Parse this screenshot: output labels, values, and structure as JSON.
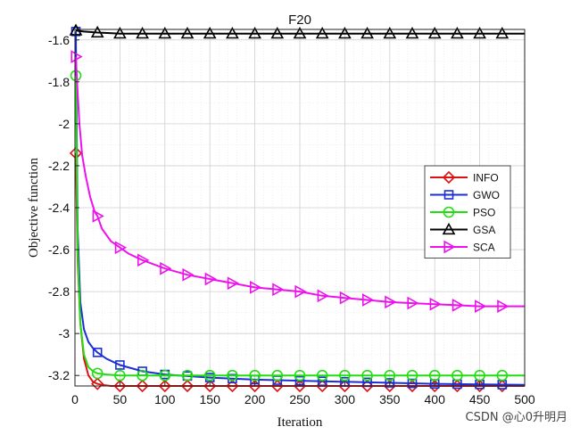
{
  "chart_data": {
    "type": "line",
    "title": "F20",
    "xlabel": "Iteration",
    "ylabel": "Objective function",
    "xlim": [
      0,
      500
    ],
    "ylim": [
      -3.25,
      -1.55
    ],
    "xticks": [
      0,
      50,
      100,
      150,
      200,
      250,
      300,
      350,
      400,
      450,
      500
    ],
    "yticks": [
      -3.2,
      -3.0,
      -2.8,
      -2.6,
      -2.4,
      -2.2,
      -2.0,
      -1.8,
      -1.6
    ],
    "ytick_labels": [
      "-3.2",
      "-3",
      "-2.8",
      "-2.6",
      "-2.4",
      "-2.2",
      "-2",
      "-1.8",
      "-1.6"
    ],
    "grid": true,
    "legend_position": "right",
    "series": [
      {
        "name": "INFO",
        "color": "#dd1111",
        "marker": "diamond",
        "x": [
          1,
          3,
          6,
          10,
          15,
          20,
          25,
          30,
          40,
          60,
          100,
          200,
          500
        ],
        "y": [
          -2.14,
          -2.65,
          -2.95,
          -3.12,
          -3.2,
          -3.23,
          -3.24,
          -3.245,
          -3.25,
          -3.25,
          -3.25,
          -3.25,
          -3.25
        ]
      },
      {
        "name": "GWO",
        "color": "#1a2fd6",
        "marker": "square",
        "x": [
          1,
          3,
          6,
          10,
          15,
          20,
          25,
          35,
          50,
          75,
          100,
          150,
          200,
          300,
          400,
          500
        ],
        "y": [
          -1.56,
          -2.5,
          -2.85,
          -2.98,
          -3.04,
          -3.07,
          -3.09,
          -3.12,
          -3.15,
          -3.18,
          -3.195,
          -3.21,
          -3.22,
          -3.23,
          -3.24,
          -3.245
        ]
      },
      {
        "name": "PSO",
        "color": "#22dd11",
        "marker": "circle",
        "x": [
          1,
          3,
          6,
          10,
          15,
          20,
          25,
          35,
          50,
          100,
          200,
          500
        ],
        "y": [
          -1.77,
          -2.6,
          -2.95,
          -3.1,
          -3.16,
          -3.18,
          -3.19,
          -3.195,
          -3.2,
          -3.2,
          -3.2,
          -3.2
        ]
      },
      {
        "name": "GSA",
        "color": "#000000",
        "marker": "triangle-up",
        "x": [
          1,
          10,
          25,
          50,
          100,
          200,
          500
        ],
        "y": [
          -1.555,
          -1.56,
          -1.565,
          -1.57,
          -1.57,
          -1.57,
          -1.57
        ]
      },
      {
        "name": "SCA",
        "color": "#ee11ee",
        "marker": "triangle-right",
        "x": [
          1,
          3,
          5,
          8,
          12,
          17,
          22,
          25,
          30,
          40,
          50,
          60,
          75,
          100,
          125,
          150,
          175,
          200,
          225,
          250,
          275,
          300,
          325,
          350,
          375,
          400,
          425,
          450,
          475,
          500
        ],
        "y": [
          -1.68,
          -1.85,
          -2.0,
          -2.15,
          -2.25,
          -2.35,
          -2.42,
          -2.44,
          -2.5,
          -2.56,
          -2.59,
          -2.62,
          -2.65,
          -2.69,
          -2.72,
          -2.74,
          -2.76,
          -2.78,
          -2.79,
          -2.8,
          -2.82,
          -2.83,
          -2.84,
          -2.85,
          -2.855,
          -2.86,
          -2.865,
          -2.87,
          -2.87,
          -2.87
        ]
      }
    ]
  },
  "watermark": "CSDN @心0升明月"
}
